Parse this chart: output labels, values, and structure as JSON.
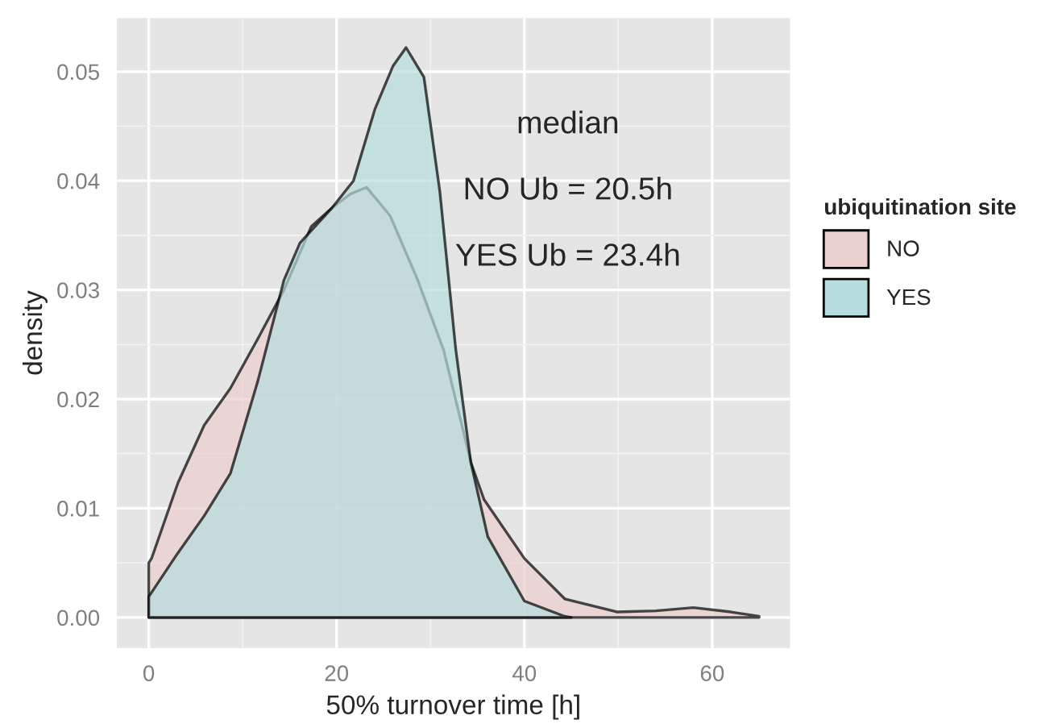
{
  "chart_data": {
    "type": "area",
    "xlabel": "50% turnover time [h]",
    "ylabel": "density",
    "legend_title": "ubiquitination site",
    "annotations": [
      "median",
      "NO Ub = 20.5h",
      "YES Ub = 23.4h"
    ],
    "series": [
      {
        "name": "NO",
        "color": "#e9cfcd",
        "x": [
          0,
          0.3,
          3.1,
          5.9,
          8.7,
          11.6,
          14.4,
          17.3,
          19.5,
          21.5,
          23.2,
          25.7,
          28.6,
          31.4,
          34.3,
          35.7,
          40,
          44.3,
          49.9,
          54,
          58,
          62,
          65
        ],
        "values": [
          0.005,
          0.0054,
          0.0123,
          0.0176,
          0.021,
          0.0255,
          0.03,
          0.0358,
          0.0375,
          0.0388,
          0.0394,
          0.0368,
          0.031,
          0.0245,
          0.0142,
          0.0108,
          0.0054,
          0.0017,
          0.0005,
          0.0006,
          0.0009,
          0.0005,
          0.0001
        ]
      },
      {
        "name": "YES",
        "color": "#b7ddde",
        "x": [
          0,
          3.1,
          5.9,
          8.7,
          11.6,
          14.4,
          16.1,
          19.5,
          21.8,
          24.1,
          26,
          27.4,
          29.3,
          31,
          32.7,
          34.3,
          36.1,
          40,
          44.3,
          45
        ],
        "values": [
          0.0019,
          0.0059,
          0.0093,
          0.0132,
          0.0216,
          0.0309,
          0.0343,
          0.0375,
          0.04,
          0.0466,
          0.0505,
          0.0522,
          0.0495,
          0.039,
          0.0245,
          0.0142,
          0.0074,
          0.0015,
          0.0001,
          0
        ]
      }
    ],
    "xlim": [
      -3.4,
      68.3
    ],
    "ylim": [
      -0.0028,
      0.0549
    ],
    "xticks": [
      0,
      20,
      40,
      60
    ],
    "yticks": [
      {
        "value": 0,
        "label": "0.00"
      },
      {
        "value": 0.01,
        "label": "0.01"
      },
      {
        "value": 0.02,
        "label": "0.02"
      },
      {
        "value": 0.03,
        "label": "0.03"
      },
      {
        "value": 0.04,
        "label": "0.04"
      },
      {
        "value": 0.05,
        "label": "0.05"
      }
    ],
    "grid": true,
    "legend": "right"
  }
}
